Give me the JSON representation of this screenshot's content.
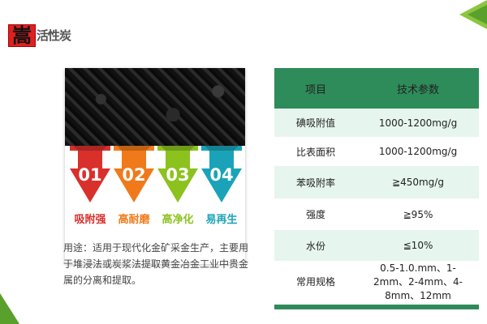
{
  "brand": {
    "logo_char": "嵩",
    "title": "活性炭"
  },
  "features": [
    {
      "num": "01",
      "label": "吸附强",
      "color": "#d9302c"
    },
    {
      "num": "02",
      "label": "高耐磨",
      "color": "#f07a1a"
    },
    {
      "num": "03",
      "label": "高净化",
      "color": "#8cc21e"
    },
    {
      "num": "04",
      "label": "易再生",
      "color": "#1aa3b8"
    }
  ],
  "usage": "用途：适用于现代化金矿采金生产，主要用于堆浸法或炭浆法提取黄金冶金工业中贵金属的分离和提取。",
  "table": {
    "headers": [
      "项目",
      "技术参数"
    ],
    "rows": [
      [
        "碘吸附值",
        "1000-1200mg/g"
      ],
      [
        "比表面积",
        "1000-1200mg/g"
      ],
      [
        "苯吸附率",
        "≧450mg/g"
      ],
      [
        "强度",
        "≧95%"
      ],
      [
        "水份",
        "≦10%"
      ],
      [
        "常用规格",
        "0.5-1.0.mm、1-2mm、2-4mm、4-8mm、12mm"
      ]
    ]
  },
  "colors": {
    "accent": "#2e8b5a",
    "row_alt": "#e6f6ee"
  }
}
